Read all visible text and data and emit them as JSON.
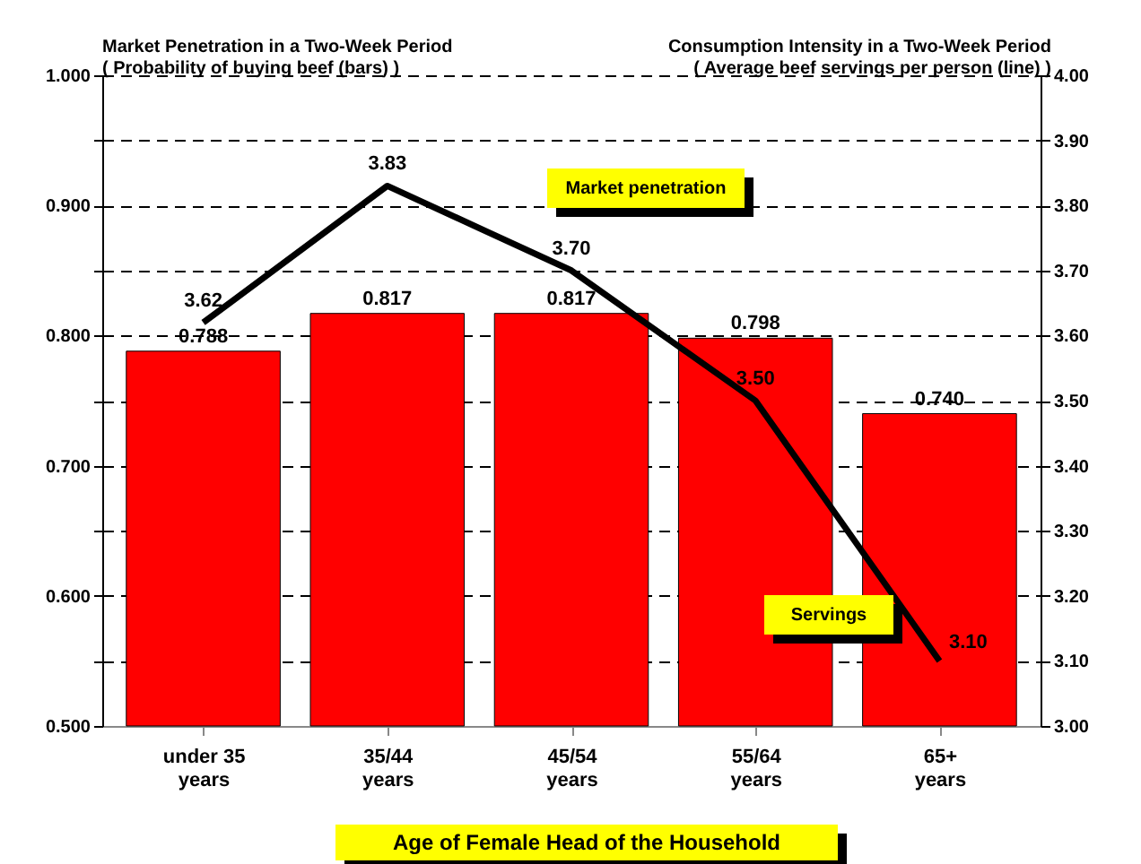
{
  "chart_data": {
    "type": "bar",
    "categories": [
      "under 35\nyears",
      "35/44\nyears",
      "45/54\nyears",
      "55/64\nyears",
      "65+\nyears"
    ],
    "xlabel": "Age of Female Head of the Household",
    "ylabel": "Market Penetration in a Two-Week Period\n( Probability of buying beef (bars) )",
    "y2label": "Consumption Intensity in a Two-Week Period\n( Average beef servings per person (line) )",
    "series": [
      {
        "color": "#ff0000",
        "values": [
          0.788,
          0.817,
          0.817,
          0.798,
          0.74
        ],
        "value_labels": [
          "0.788",
          "0.817",
          "0.817",
          "0.798",
          "0.740"
        ]
      },
      {
        "type": "line",
        "axis": "y2",
        "color": "#000000",
        "values": [
          3.62,
          3.83,
          3.7,
          3.5,
          3.1
        ],
        "value_labels": [
          "3.62",
          "3.83",
          "3.70",
          "3.50",
          "3.10"
        ]
      }
    ],
    "ylim": [
      0.5,
      1.0
    ],
    "yticks": [
      {
        "value": 0.5,
        "label": "0.500"
      },
      {
        "value": 0.55,
        "label": null
      },
      {
        "value": 0.6,
        "label": "0.600"
      },
      {
        "value": 0.65,
        "label": null
      },
      {
        "value": 0.7,
        "label": "0.700"
      },
      {
        "value": 0.75,
        "label": null
      },
      {
        "value": 0.8,
        "label": "0.800"
      },
      {
        "value": 0.85,
        "label": null
      },
      {
        "value": 0.9,
        "label": "0.900"
      },
      {
        "value": 0.95,
        "label": null
      },
      {
        "value": 1.0,
        "label": "1.000"
      }
    ],
    "y2lim": [
      3.0,
      4.0
    ],
    "y2ticks": [
      {
        "value": 3.0,
        "label": "3.00"
      },
      {
        "value": 3.1,
        "label": "3.10"
      },
      {
        "value": 3.2,
        "label": "3.20"
      },
      {
        "value": 3.3,
        "label": "3.30"
      },
      {
        "value": 3.4,
        "label": "3.40"
      },
      {
        "value": 3.5,
        "label": "3.50"
      },
      {
        "value": 3.6,
        "label": "3.60"
      },
      {
        "value": 3.7,
        "label": "3.70"
      },
      {
        "value": 3.8,
        "label": "3.80"
      },
      {
        "value": 3.9,
        "label": "3.90"
      },
      {
        "value": 4.0,
        "label": "4.00"
      }
    ],
    "grid": "y",
    "annotations": [
      "Market penetration",
      "Servings"
    ]
  }
}
